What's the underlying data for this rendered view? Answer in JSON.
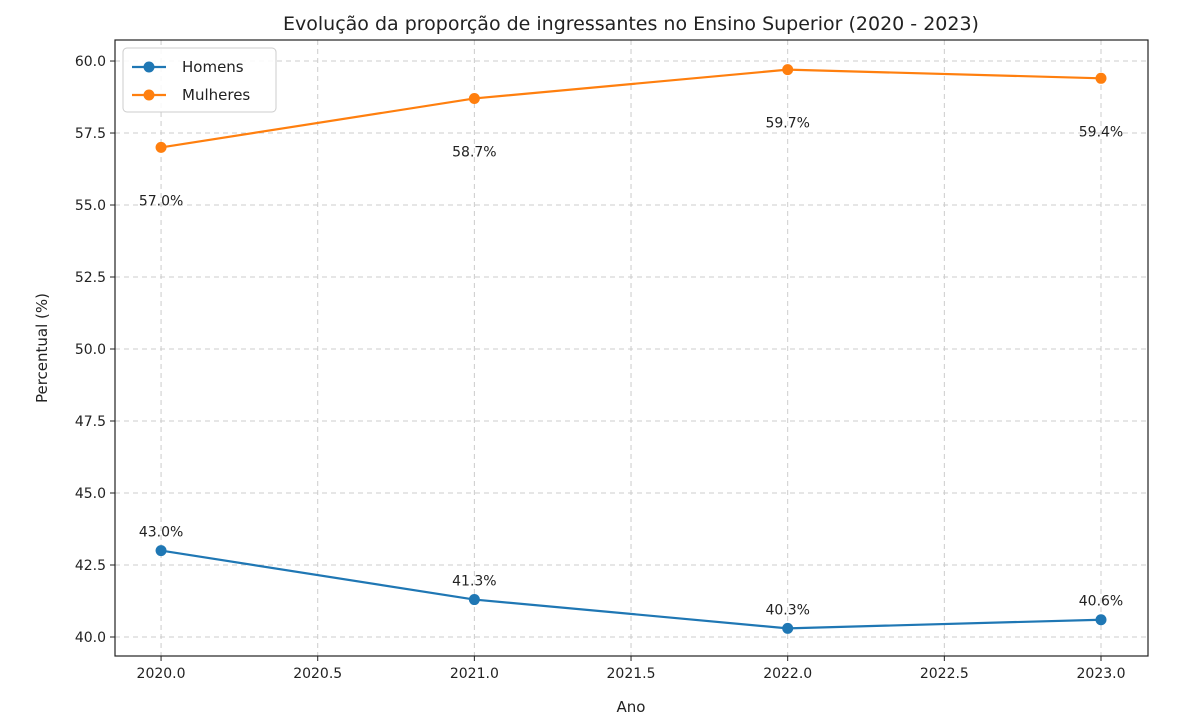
{
  "chart_data": {
    "type": "line",
    "title": "Evolução da proporção de ingressantes no Ensino Superior (2020 - 2023)",
    "xlabel": "Ano",
    "ylabel": "Percentual (%)",
    "x": [
      2020,
      2021,
      2022,
      2023
    ],
    "xlim": [
      2019.853,
      2023.15
    ],
    "ylim": [
      39.34,
      60.73
    ],
    "xticks": [
      "2020.0",
      "2020.5",
      "2021.0",
      "2021.5",
      "2022.0",
      "2022.5",
      "2023.0"
    ],
    "yticks": [
      "40.0",
      "42.5",
      "45.0",
      "47.5",
      "50.0",
      "52.5",
      "55.0",
      "57.5",
      "60.0"
    ],
    "grid": true,
    "legend_position": "top-left",
    "series": [
      {
        "name": "Homens",
        "color": "#1f77b4",
        "values": [
          43.0,
          41.3,
          40.3,
          40.6
        ],
        "labels": [
          "43.0%",
          "41.3%",
          "40.3%",
          "40.6%"
        ],
        "label_side": "above"
      },
      {
        "name": "Mulheres",
        "color": "#ff7f0e",
        "values": [
          57.0,
          58.7,
          59.7,
          59.4
        ],
        "labels": [
          "57.0%",
          "58.7%",
          "59.7%",
          "59.4%"
        ],
        "label_side": "below"
      }
    ]
  }
}
